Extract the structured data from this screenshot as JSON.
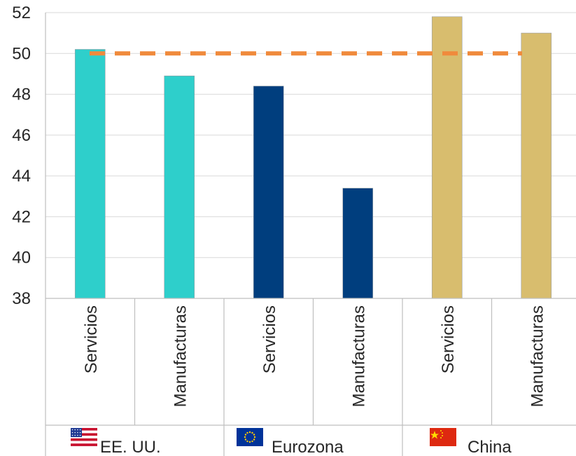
{
  "chart_data": {
    "type": "bar",
    "title": "",
    "xlabel": "",
    "ylabel": "",
    "ylim": [
      38,
      52
    ],
    "yticks": [
      "38",
      "40",
      "42",
      "44",
      "46",
      "48",
      "50",
      "52"
    ],
    "grid": true,
    "categories": [
      "Servicios",
      "Manufacturas",
      "Servicios",
      "Manufacturas",
      "Servicios",
      "Manufacturas"
    ],
    "groups": [
      {
        "name": "EE. UU.",
        "flag": "us-flag-icon",
        "color": "#2ecfcb",
        "values": [
          50.2,
          48.9
        ]
      },
      {
        "name": "Eurozona",
        "flag": "eu-flag-icon",
        "color": "#003e7e",
        "values": [
          48.4,
          43.4
        ]
      },
      {
        "name": "China",
        "flag": "china-flag-icon",
        "color": "#d8bd6e",
        "values": [
          51.8,
          51.0
        ]
      }
    ],
    "reference_line": {
      "value": 50,
      "color": "#f08a3c",
      "style": "dashed"
    }
  }
}
